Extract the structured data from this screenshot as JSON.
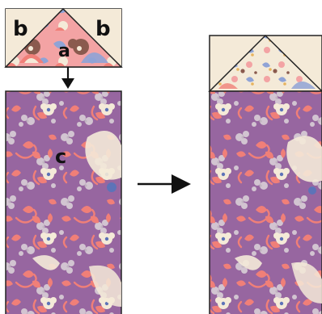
{
  "labels": {
    "corner_left": "b",
    "corner_right": "b",
    "triangle": "a",
    "rectangle": "c"
  },
  "colors": {
    "purple_fabric": "#9b6aa3",
    "purple_dark": "#7d5289",
    "coral": "#f07f78",
    "cream": "#f4ead8",
    "lace": "#d8cfd6",
    "blue_dot": "#5d73b8",
    "triangle_pink": "#f3a3a4",
    "brown": "#8a5a4e",
    "periwinkle": "#8fa3d6",
    "outline": "#222222"
  },
  "icons": [
    "arrow-down-icon",
    "arrow-right-icon"
  ]
}
